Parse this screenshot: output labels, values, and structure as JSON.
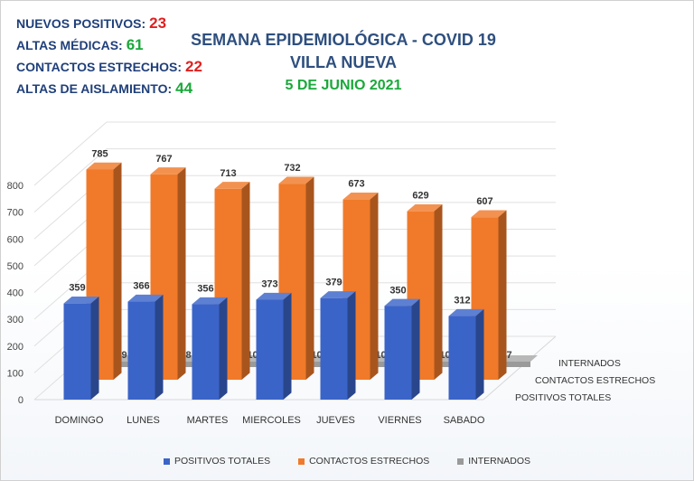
{
  "stats": [
    {
      "label": "NUEVOS POSITIVOS:",
      "value": "23",
      "color": "#e02020"
    },
    {
      "label": "ALTAS MÉDICAS:",
      "value": "61",
      "color": "#1aa83a"
    },
    {
      "label": "CONTACTOS ESTRECHOS:",
      "value": "22",
      "color": "#e02020"
    },
    {
      "label": "ALTAS DE AISLAMIENTO:",
      "value": "44",
      "color": "#1aa83a"
    }
  ],
  "title": {
    "line1": "SEMANA EPIDEMIOLÓGICA - COVID 19",
    "line2": "VILLA NUEVA",
    "date": "5 DE JUNIO 2021"
  },
  "chart_data": {
    "type": "bar",
    "style": "3d-clustered-depth",
    "categories": [
      "DOMINGO",
      "LUNES",
      "MARTES",
      "MIERCOLES",
      "JUEVES",
      "VIERNES",
      "SABADO"
    ],
    "ylim": [
      0,
      800
    ],
    "yticks": [
      0,
      100,
      200,
      300,
      400,
      500,
      600,
      700,
      800
    ],
    "grid": true,
    "legend_position": "bottom",
    "series": [
      {
        "name": "POSITIVOS TOTALES",
        "color": "#3b64c8",
        "values": [
          359,
          366,
          356,
          373,
          379,
          350,
          312
        ]
      },
      {
        "name": "CONTACTOS ESTRECHOS",
        "color": "#f07a2a",
        "values": [
          785,
          767,
          713,
          732,
          673,
          629,
          607
        ]
      },
      {
        "name": "INTERNADOS",
        "color": "#9a9a9a",
        "values": [
          9,
          8,
          10,
          10,
          10,
          10,
          7
        ],
        "labels": [
          "9",
          "8",
          "10",
          "10",
          "10",
          "10",
          "7"
        ]
      }
    ]
  }
}
